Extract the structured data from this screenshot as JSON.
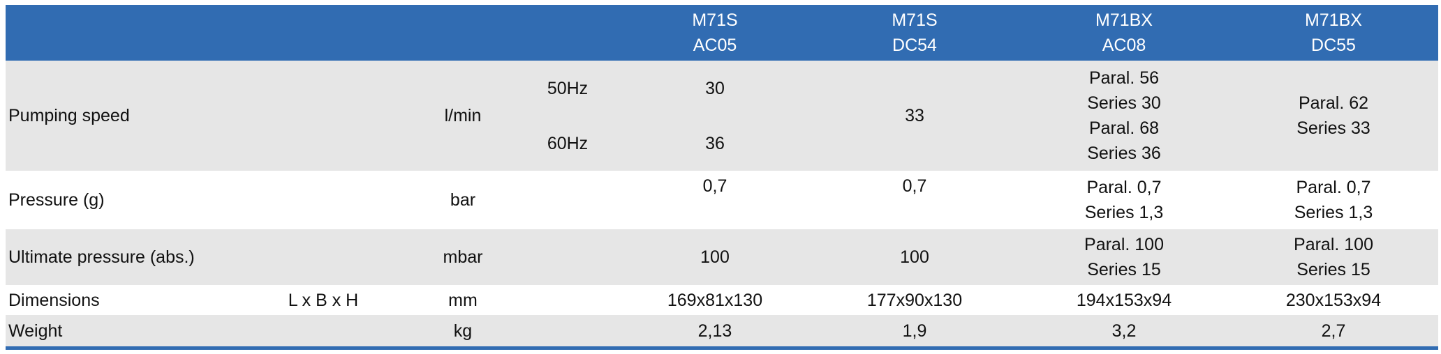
{
  "header": {
    "models": [
      {
        "line1": "M71S",
        "line2": "AC05"
      },
      {
        "line1": "M71S",
        "line2": "DC54"
      },
      {
        "line1": "M71BX",
        "line2": "AC08"
      },
      {
        "line1": "M71BX",
        "line2": "DC55"
      }
    ]
  },
  "rows": {
    "pumping_speed": {
      "label": "Pumping speed",
      "unit": "l/min",
      "freq_50": "50Hz",
      "freq_60": "60Hz",
      "m1_50": "30",
      "m1_60": "36",
      "m2": "33",
      "m3_a1": "Paral. 56",
      "m3_a2": "Series 30",
      "m3_b1": "Paral. 68",
      "m3_b2": "Series 36",
      "m4_1": "Paral. 62",
      "m4_2": "Series 33"
    },
    "pressure": {
      "label": "Pressure (g)",
      "unit": "bar",
      "m1": "0,7",
      "m2": "0,7",
      "m3_1": "Paral. 0,7",
      "m3_2": "Series 1,3",
      "m4_1": "Paral. 0,7",
      "m4_2": "Series 1,3"
    },
    "ultimate": {
      "label": "Ultimate pressure (abs.)",
      "unit": "mbar",
      "m1": "100",
      "m2": "100",
      "m3_1": "Paral. 100",
      "m3_2": "Series 15",
      "m4_1": "Paral. 100",
      "m4_2": "Series 15"
    },
    "dimensions": {
      "label": "Dimensions",
      "note": "L x B x H",
      "unit": "mm",
      "m1": "169x81x130",
      "m2": "177x90x130",
      "m3": "194x153x94",
      "m4": "230x153x94"
    },
    "weight": {
      "label": "Weight",
      "unit": "kg",
      "m1": "2,13",
      "m2": "1,9",
      "m3": "3,2",
      "m4": "2,7"
    }
  },
  "colors": {
    "header_bg": "#316cb2",
    "row_shade": "#e6e6e6"
  }
}
